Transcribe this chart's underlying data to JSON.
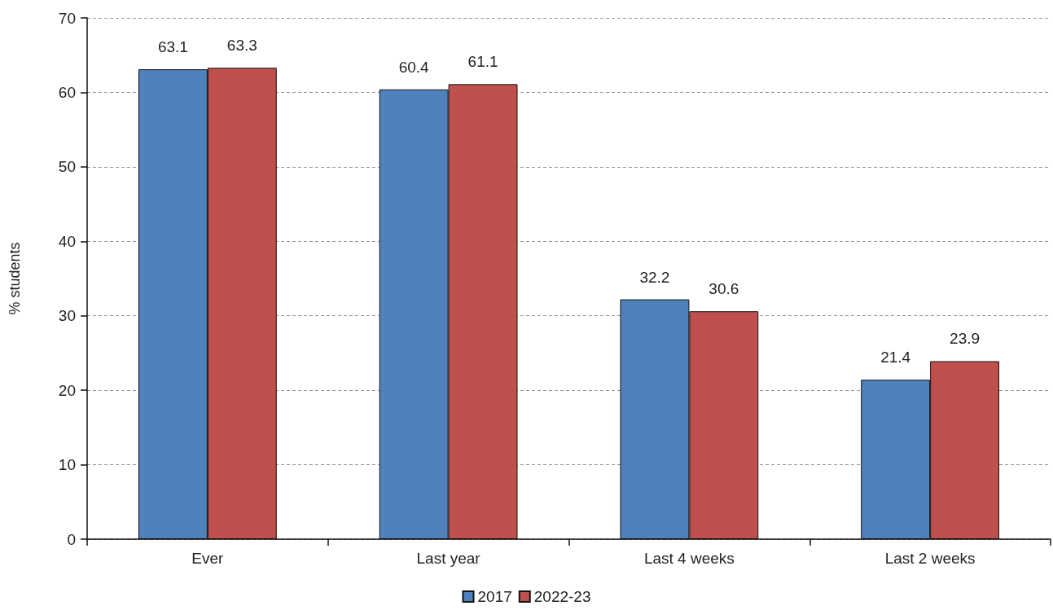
{
  "chart_data": {
    "type": "bar",
    "ylabel": "% students",
    "categories": [
      "Ever",
      "Last year",
      "Last 4 weeks",
      "Last 2 weeks"
    ],
    "series": [
      {
        "name": "2017",
        "color": "#4f81bd",
        "values": [
          63.1,
          60.4,
          32.2,
          21.4
        ]
      },
      {
        "name": "2022-23",
        "color": "#c0504d",
        "values": [
          63.3,
          61.1,
          30.6,
          23.9
        ]
      }
    ],
    "ylim": [
      0,
      70
    ],
    "yticks": [
      0,
      10,
      20,
      30,
      40,
      50,
      60,
      70
    ],
    "grid": "y",
    "legend": "bottom",
    "data_labels": true
  }
}
